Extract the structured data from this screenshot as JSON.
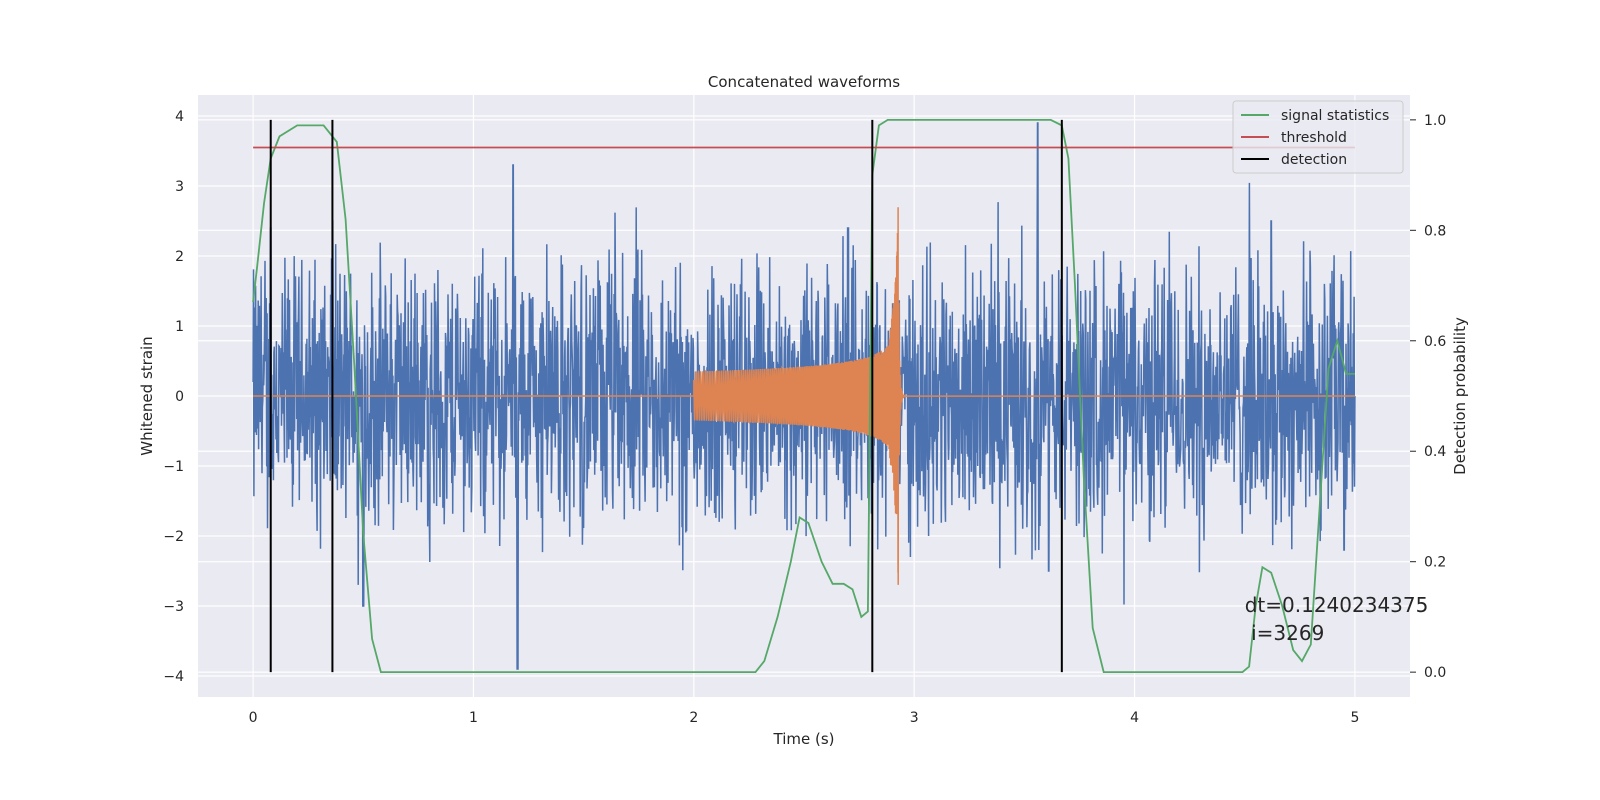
{
  "chart_data": {
    "type": "line",
    "title": "Concatenated waveforms",
    "xlabel": "Time (s)",
    "ylabel": "Whitened strain",
    "y2label": "Detection probability",
    "xlim": [
      -0.25,
      5.25
    ],
    "ylim": [
      -4.3,
      4.3
    ],
    "y2lim": [
      -0.045,
      1.045
    ],
    "xticks": [
      0,
      1,
      2,
      3,
      4,
      5
    ],
    "yticks": [
      -4,
      -3,
      -2,
      -1,
      0,
      1,
      2,
      3,
      4
    ],
    "y2ticks": [
      0.0,
      0.2,
      0.4,
      0.6,
      0.8,
      1.0
    ],
    "y2tick_labels": [
      "0.0",
      "0.2",
      "0.4",
      "0.6",
      "0.8",
      "1.0"
    ],
    "grid": true,
    "legend_position": "top-right",
    "series": [
      {
        "name": "",
        "axis": "left",
        "color": "#4c72b0",
        "description_values": "whitened strain noise, roughly within [-2.5, 2.5] with spikes to about -3.9 and 3.9",
        "points": [
          [
            0.0,
            0.2
          ],
          [
            0.08,
            2.4
          ],
          [
            0.36,
            2.5
          ],
          [
            0.5,
            -3.0
          ],
          [
            1.18,
            3.3
          ],
          [
            1.2,
            -3.9
          ],
          [
            2.7,
            2.4
          ],
          [
            3.56,
            3.9
          ],
          [
            3.61,
            -2.5
          ],
          [
            4.62,
            2.5
          ],
          [
            4.95,
            -2.2
          ],
          [
            5.0,
            0.0
          ]
        ]
      },
      {
        "name": "",
        "axis": "left",
        "color": "#dd8452",
        "description_values": "injected chirp waveform from t=2.0 s to t=2.95 s, amplitude rising from about 0.4 to 2.7",
        "points": [
          [
            2.0,
            0.4
          ],
          [
            2.5,
            0.55
          ],
          [
            2.8,
            1.0
          ],
          [
            2.9,
            2.7
          ],
          [
            2.93,
            -2.0
          ],
          [
            2.95,
            0.0
          ]
        ]
      },
      {
        "name": "signal statistics",
        "axis": "right",
        "color": "#55a868",
        "points": [
          [
            0.0,
            0.67
          ],
          [
            0.02,
            0.74
          ],
          [
            0.05,
            0.85
          ],
          [
            0.08,
            0.93
          ],
          [
            0.12,
            0.97
          ],
          [
            0.2,
            0.99
          ],
          [
            0.32,
            0.99
          ],
          [
            0.38,
            0.96
          ],
          [
            0.42,
            0.82
          ],
          [
            0.46,
            0.55
          ],
          [
            0.5,
            0.25
          ],
          [
            0.54,
            0.06
          ],
          [
            0.58,
            0.0
          ],
          [
            2.28,
            0.0
          ],
          [
            2.32,
            0.02
          ],
          [
            2.38,
            0.1
          ],
          [
            2.44,
            0.2
          ],
          [
            2.48,
            0.28
          ],
          [
            2.52,
            0.27
          ],
          [
            2.58,
            0.2
          ],
          [
            2.63,
            0.16
          ],
          [
            2.68,
            0.16
          ],
          [
            2.72,
            0.15
          ],
          [
            2.76,
            0.1
          ],
          [
            2.79,
            0.11
          ],
          [
            2.81,
            0.9
          ],
          [
            2.84,
            0.99
          ],
          [
            2.88,
            1.0
          ],
          [
            3.62,
            1.0
          ],
          [
            3.67,
            0.99
          ],
          [
            3.7,
            0.93
          ],
          [
            3.73,
            0.7
          ],
          [
            3.77,
            0.35
          ],
          [
            3.81,
            0.08
          ],
          [
            3.86,
            0.0
          ],
          [
            4.49,
            0.0
          ],
          [
            4.52,
            0.01
          ],
          [
            4.55,
            0.12
          ],
          [
            4.58,
            0.19
          ],
          [
            4.62,
            0.18
          ],
          [
            4.67,
            0.12
          ],
          [
            4.72,
            0.04
          ],
          [
            4.76,
            0.02
          ],
          [
            4.8,
            0.05
          ],
          [
            4.84,
            0.3
          ],
          [
            4.88,
            0.55
          ],
          [
            4.92,
            0.6
          ],
          [
            4.96,
            0.54
          ],
          [
            5.0,
            0.54
          ]
        ]
      },
      {
        "name": "threshold",
        "axis": "right",
        "color": "#c44e52",
        "points": [
          [
            0.0,
            0.95
          ],
          [
            5.0,
            0.95
          ]
        ]
      },
      {
        "name": "detection",
        "axis": "right",
        "color": "#000000",
        "type": "vertical_lines",
        "x": [
          0.08,
          0.36,
          2.81,
          3.67
        ]
      }
    ],
    "annotation": {
      "line1": "dt=0.1240234375",
      "line2": " i=3269",
      "x": 4.5,
      "y": -3.0
    },
    "colors": {
      "axes_bg": "#eaeaf2",
      "grid": "#ffffff"
    }
  }
}
